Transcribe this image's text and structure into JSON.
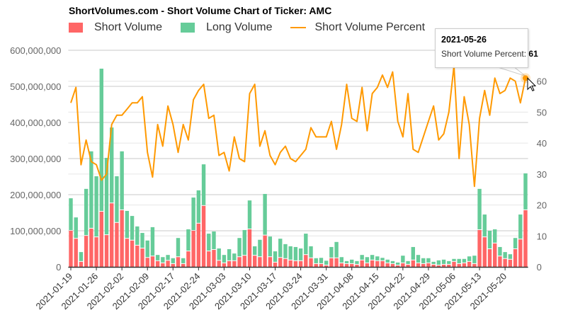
{
  "title": "ShortVolumes.com - Short Volume Chart of Ticker: AMC",
  "colors": {
    "short": "#FF6666",
    "long": "#66CC99",
    "percent": "#FF9900"
  },
  "tooltip": {
    "date": "2021-05-26",
    "label": "Short Volume Percent: ",
    "value": "61"
  },
  "chart_data": {
    "type": "bar",
    "stacked": true,
    "legend": [
      "Short Volume",
      "Long Volume",
      "Short Volume Percent"
    ],
    "legend_placement": "top-left",
    "grid": true,
    "y_left": {
      "range": [
        0,
        600000000
      ],
      "ticks": [
        "0",
        "100,000,000",
        "200,000,000",
        "300,000,000",
        "400,000,000",
        "500,000,000",
        "600,000,000"
      ]
    },
    "y_right": {
      "range": [
        0,
        70
      ],
      "ticks": [
        "0",
        "10",
        "20",
        "30",
        "40",
        "50",
        "60"
      ]
    },
    "x_tick_labels": [
      "2021-01-19",
      "2021-01-26",
      "2021-02-02",
      "2021-02-09",
      "2021-02-17",
      "2021-02-24",
      "2021-03-03",
      "2021-03-10",
      "2021-03-17",
      "2021-03-24",
      "2021-03-31",
      "2021-04-08",
      "2021-04-15",
      "2021-04-22",
      "2021-04-29",
      "2021-05-06",
      "2021-05-13",
      "2021-05-20"
    ],
    "x": [
      "2021-01-19",
      "2021-01-20",
      "2021-01-21",
      "2021-01-22",
      "2021-01-25",
      "2021-01-26",
      "2021-01-27",
      "2021-01-28",
      "2021-01-29",
      "2021-02-01",
      "2021-02-02",
      "2021-02-03",
      "2021-02-04",
      "2021-02-05",
      "2021-02-08",
      "2021-02-09",
      "2021-02-10",
      "2021-02-11",
      "2021-02-12",
      "2021-02-16",
      "2021-02-17",
      "2021-02-18",
      "2021-02-19",
      "2021-02-22",
      "2021-02-23",
      "2021-02-24",
      "2021-02-25",
      "2021-02-26",
      "2021-03-01",
      "2021-03-02",
      "2021-03-03",
      "2021-03-04",
      "2021-03-05",
      "2021-03-08",
      "2021-03-09",
      "2021-03-10",
      "2021-03-11",
      "2021-03-12",
      "2021-03-15",
      "2021-03-16",
      "2021-03-17",
      "2021-03-18",
      "2021-03-19",
      "2021-03-22",
      "2021-03-23",
      "2021-03-24",
      "2021-03-25",
      "2021-03-26",
      "2021-03-29",
      "2021-03-30",
      "2021-03-31",
      "2021-04-01",
      "2021-04-05",
      "2021-04-06",
      "2021-04-07",
      "2021-04-08",
      "2021-04-09",
      "2021-04-12",
      "2021-04-13",
      "2021-04-14",
      "2021-04-15",
      "2021-04-16",
      "2021-04-19",
      "2021-04-20",
      "2021-04-21",
      "2021-04-22",
      "2021-04-23",
      "2021-04-26",
      "2021-04-27",
      "2021-04-28",
      "2021-04-29",
      "2021-04-30",
      "2021-05-03",
      "2021-05-04",
      "2021-05-05",
      "2021-05-06",
      "2021-05-07",
      "2021-05-10",
      "2021-05-11",
      "2021-05-12",
      "2021-05-13",
      "2021-05-14",
      "2021-05-17",
      "2021-05-18",
      "2021-05-19",
      "2021-05-20",
      "2021-05-21",
      "2021-05-24",
      "2021-05-25",
      "2021-05-26"
    ],
    "series": [
      {
        "name": "Short Volume",
        "axis": "left",
        "values": [
          100000000.0,
          78000000.0,
          14000000.0,
          86000000.0,
          106000000.0,
          82000000.0,
          153000000.0,
          88000000.0,
          176000000.0,
          122000000.0,
          157000000.0,
          78000000.0,
          73000000.0,
          59000000.0,
          51000000.0,
          25000000.0,
          29000000.0,
          16000000.0,
          10000000.0,
          17000000.0,
          8000000.0,
          27000000.0,
          8000000.0,
          43000000.0,
          100000000.0,
          120000000.0,
          169000000.0,
          43000000.0,
          47000000.0,
          17000000.0,
          10000000.0,
          16000000.0,
          16000000.0,
          27000000.0,
          31000000.0,
          104000000.0,
          31000000.0,
          27000000.0,
          87000000.0,
          27000000.0,
          12000000.0,
          25000000.0,
          22000000.0,
          18000000.0,
          16000000.0,
          16000000.0,
          33000000.0,
          24000000.0,
          8000000.0,
          8000000.0,
          4000000.0,
          24000000.0,
          24000000.0,
          10000000.0,
          8000000.0,
          8000000.0,
          6000000.0,
          18000000.0,
          10000000.0,
          18000000.0,
          16000000.0,
          16000000.0,
          10000000.0,
          8000000.0,
          4000000.0,
          10000000.0,
          6000000.0,
          18000000.0,
          10000000.0,
          8000000.0,
          10000000.0,
          6000000.0,
          4000000.0,
          6000000.0,
          6000000.0,
          14000000.0,
          8000000.0,
          10000000.0,
          14000000.0,
          8000000.0,
          102000000.0,
          82000000.0,
          49000000.0,
          65000000.0,
          29000000.0,
          22000000.0,
          20000000.0,
          49000000.0,
          76000000.0,
          157000000.0
        ]
      },
      {
        "name": "Long Volume",
        "axis": "left",
        "values": [
          90000000.0,
          59000000.0,
          27000000.0,
          130000000.0,
          214000000.0,
          169000000.0,
          396000000.0,
          214000000.0,
          210000000.0,
          129000000.0,
          163000000.0,
          77000000.0,
          68000000.0,
          53000000.0,
          43000000.0,
          48000000.0,
          81000000.0,
          17000000.0,
          17000000.0,
          16000000.0,
          16000000.0,
          53000000.0,
          16000000.0,
          61000000.0,
          92000000.0,
          92000000.0,
          115000000.0,
          49000000.0,
          51000000.0,
          34000000.0,
          23000000.0,
          33000000.0,
          21000000.0,
          53000000.0,
          71000000.0,
          80000000.0,
          26000000.0,
          48000000.0,
          115000000.0,
          57000000.0,
          31000000.0,
          53000000.0,
          41000000.0,
          39000000.0,
          39000000.0,
          35000000.0,
          59000000.0,
          33000000.0,
          16000000.0,
          17000000.0,
          13000000.0,
          31000000.0,
          45000000.0,
          17000000.0,
          8000000.0,
          12000000.0,
          10000000.0,
          15000000.0,
          17000000.0,
          15000000.0,
          13000000.0,
          9000000.0,
          10000000.0,
          8000000.0,
          8000000.0,
          21000000.0,
          10000000.0,
          37000000.0,
          23000000.0,
          16000000.0,
          14000000.0,
          8000000.0,
          14000000.0,
          14000000.0,
          10000000.0,
          8000000.0,
          14000000.0,
          12000000.0,
          15000000.0,
          23000000.0,
          114000000.0,
          63000000.0,
          51000000.0,
          39000000.0,
          26000000.0,
          19000000.0,
          15000000.0,
          31000000.0,
          69000000.0,
          102000000.0
        ]
      },
      {
        "name": "Short Volume Percent",
        "axis": "right",
        "type": "line",
        "values": [
          53,
          58,
          33,
          41,
          34,
          33,
          28,
          30,
          46,
          49,
          49,
          51,
          53,
          53,
          55,
          37,
          29,
          46,
          39,
          52,
          46,
          37,
          46,
          41,
          54,
          57,
          59,
          48,
          49,
          36,
          37,
          31,
          42,
          35,
          34,
          56,
          59,
          39,
          44,
          36,
          33,
          37,
          39,
          35,
          34,
          36,
          38,
          45,
          42,
          42,
          42,
          47,
          38,
          46,
          59,
          48,
          47,
          58,
          44,
          56,
          58,
          62,
          58,
          63,
          47,
          42,
          56,
          38,
          37,
          42,
          47,
          52,
          41,
          43,
          50,
          65,
          35,
          55,
          46,
          26,
          48,
          57,
          49,
          61,
          56,
          57,
          61,
          60,
          53,
          61
        ]
      }
    ]
  }
}
